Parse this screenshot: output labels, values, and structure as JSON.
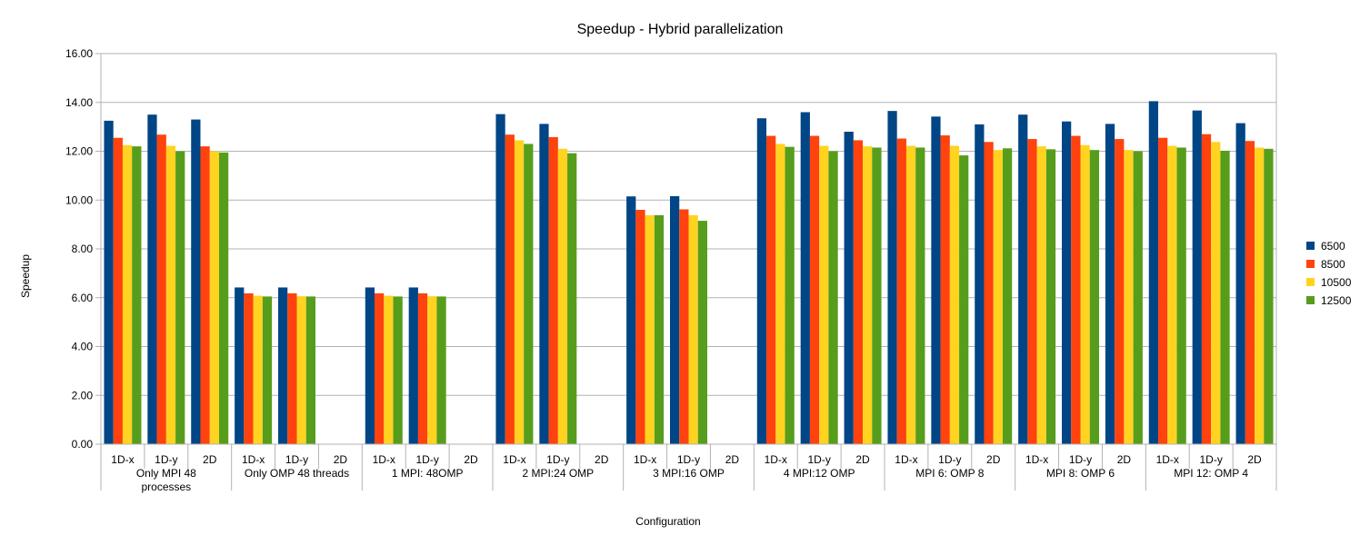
{
  "chart_data": {
    "type": "bar",
    "title": "Speedup - Hybrid parallelization",
    "xlabel": "Configuration",
    "ylabel": "Speedup",
    "ylim": [
      0,
      16
    ],
    "yticks": [
      "0.00",
      "2.00",
      "4.00",
      "6.00",
      "8.00",
      "10.00",
      "12.00",
      "14.00",
      "16.00"
    ],
    "grid": true,
    "legend_position": "right",
    "colors": [
      "#004586",
      "#ff420e",
      "#ffd320",
      "#579d1c"
    ],
    "groups": [
      {
        "label_lines": [
          "Only MPI 48",
          "processes"
        ],
        "subcategories": [
          "1D-x",
          "1D-y",
          "2D"
        ]
      },
      {
        "label_lines": [
          "Only OMP 48 threads"
        ],
        "subcategories": [
          "1D-x",
          "1D-y",
          "2D"
        ]
      },
      {
        "label_lines": [
          "1 MPI: 48OMP"
        ],
        "subcategories": [
          "1D-x",
          "1D-y",
          "2D"
        ]
      },
      {
        "label_lines": [
          "2 MPI:24 OMP"
        ],
        "subcategories": [
          "1D-x",
          "1D-y",
          "2D"
        ]
      },
      {
        "label_lines": [
          "3 MPI:16 OMP"
        ],
        "subcategories": [
          "1D-x",
          "1D-y",
          "2D"
        ]
      },
      {
        "label_lines": [
          "4 MPI:12 OMP"
        ],
        "subcategories": [
          "1D-x",
          "1D-y",
          "2D"
        ]
      },
      {
        "label_lines": [
          "MPI 6: OMP 8"
        ],
        "subcategories": [
          "1D-x",
          "1D-y",
          "2D"
        ]
      },
      {
        "label_lines": [
          "MPI 8: OMP 6"
        ],
        "subcategories": [
          "1D-x",
          "1D-y",
          "2D"
        ]
      },
      {
        "label_lines": [
          "MPI 12: OMP 4"
        ],
        "subcategories": [
          "1D-x",
          "1D-y",
          "2D"
        ]
      }
    ],
    "series": [
      {
        "name": "6500",
        "values": [
          13.25,
          13.5,
          13.3,
          6.42,
          6.42,
          null,
          6.42,
          6.42,
          null,
          13.52,
          13.12,
          null,
          10.15,
          10.16,
          null,
          13.35,
          13.6,
          12.8,
          13.65,
          13.42,
          13.1,
          13.5,
          13.22,
          13.12,
          14.05,
          13.67,
          13.15
        ]
      },
      {
        "name": "8500",
        "values": [
          12.55,
          12.68,
          12.2,
          6.18,
          6.18,
          null,
          6.18,
          6.18,
          null,
          12.68,
          12.58,
          null,
          9.6,
          9.62,
          null,
          12.63,
          12.63,
          12.45,
          12.52,
          12.65,
          12.38,
          12.5,
          12.63,
          12.5,
          12.55,
          12.7,
          12.42
        ]
      },
      {
        "name": "10500",
        "values": [
          12.25,
          12.22,
          12.0,
          6.08,
          6.06,
          null,
          6.08,
          6.06,
          null,
          12.45,
          12.1,
          null,
          9.38,
          9.38,
          null,
          12.3,
          12.22,
          12.2,
          12.22,
          12.22,
          12.05,
          12.2,
          12.25,
          12.05,
          12.22,
          12.38,
          12.15
        ]
      },
      {
        "name": "12500",
        "values": [
          12.2,
          12.0,
          11.95,
          6.05,
          6.05,
          null,
          6.05,
          6.05,
          null,
          12.3,
          11.92,
          null,
          9.38,
          9.15,
          null,
          12.18,
          12.0,
          12.15,
          12.15,
          11.83,
          12.12,
          12.08,
          12.05,
          12.0,
          12.15,
          12.02,
          12.1
        ]
      }
    ]
  }
}
